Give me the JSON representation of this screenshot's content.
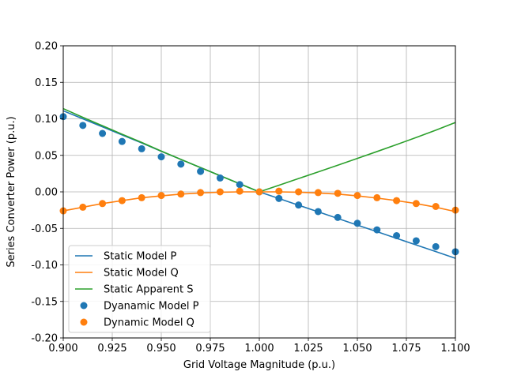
{
  "chart_data": {
    "type": "line",
    "xlabel": "Grid Voltage Magnitude (p.u.)",
    "ylabel": "Series Converter Power (p.u.)",
    "xlim": [
      0.9,
      1.1
    ],
    "ylim": [
      -0.2,
      0.2
    ],
    "xticks": [
      "0.900",
      "0.925",
      "0.950",
      "0.975",
      "1.000",
      "1.025",
      "1.050",
      "1.075",
      "1.100"
    ],
    "yticks": [
      "0.20",
      "0.15",
      "0.10",
      "0.05",
      "0.00",
      "-0.05",
      "-0.10",
      "-0.15",
      "-0.20"
    ],
    "grid": true,
    "legend_position": "lower-left",
    "x": [
      0.9,
      0.91,
      0.92,
      0.93,
      0.94,
      0.95,
      0.96,
      0.97,
      0.98,
      0.99,
      1.0,
      1.01,
      1.02,
      1.03,
      1.04,
      1.05,
      1.06,
      1.07,
      1.08,
      1.09,
      1.1
    ],
    "series": [
      {
        "name": "Static Model P",
        "kind": "line",
        "color": "#1f77b4",
        "values": [
          0.111,
          0.1,
          0.089,
          0.078,
          0.067,
          0.0555,
          0.0444,
          0.0333,
          0.0222,
          0.0111,
          0.0,
          -0.0091,
          -0.0182,
          -0.0273,
          -0.0364,
          -0.0455,
          -0.0545,
          -0.0636,
          -0.0727,
          -0.0818,
          -0.0909
        ]
      },
      {
        "name": "Static Model Q",
        "kind": "line",
        "color": "#ff7f0e",
        "values": [
          -0.026,
          -0.021,
          -0.016,
          -0.012,
          -0.008,
          -0.0055,
          -0.003,
          -0.0015,
          -0.0005,
          0.0,
          0.0,
          0.0,
          -0.0005,
          -0.0015,
          -0.003,
          -0.0055,
          -0.0085,
          -0.012,
          -0.016,
          -0.021,
          -0.027
        ]
      },
      {
        "name": "Static Apparent S",
        "kind": "line",
        "color": "#2ca02c",
        "values": [
          0.114,
          0.102,
          0.0905,
          0.079,
          0.0677,
          0.0558,
          0.0445,
          0.0333,
          0.0222,
          0.0111,
          0.0,
          0.0091,
          0.0182,
          0.0273,
          0.0365,
          0.0458,
          0.0552,
          0.0647,
          0.0745,
          0.0845,
          0.095
        ]
      },
      {
        "name": "Dyanamic Model P",
        "kind": "scatter",
        "color": "#1f77b4",
        "values": [
          0.103,
          0.091,
          0.08,
          0.069,
          0.059,
          0.048,
          0.038,
          0.028,
          0.019,
          0.01,
          0.0,
          -0.009,
          -0.018,
          -0.027,
          -0.035,
          -0.043,
          -0.052,
          -0.06,
          -0.067,
          -0.075,
          -0.082
        ]
      },
      {
        "name": "Dynamic Model Q",
        "kind": "scatter",
        "color": "#ff7f0e",
        "values": [
          -0.026,
          -0.021,
          -0.016,
          -0.012,
          -0.008,
          -0.005,
          -0.003,
          -0.001,
          0.0,
          0.001,
          0.0,
          0.001,
          0.0,
          -0.001,
          -0.002,
          -0.005,
          -0.008,
          -0.012,
          -0.016,
          -0.02,
          -0.025
        ]
      }
    ]
  }
}
